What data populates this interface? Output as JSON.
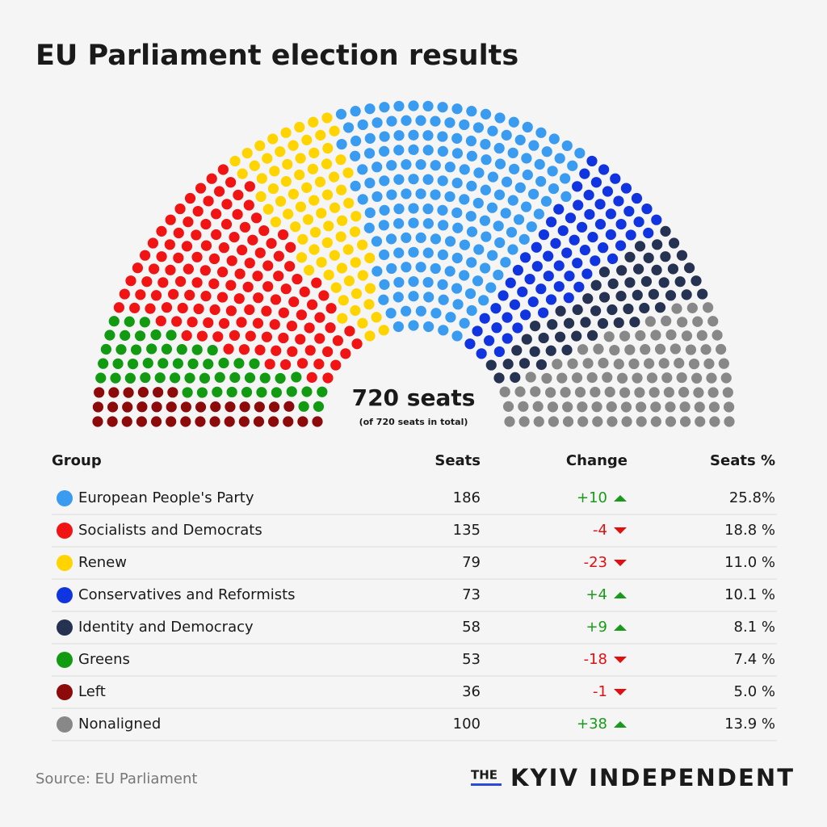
{
  "chart_data": {
    "type": "parliament",
    "title": "EU Parliament election results",
    "center_label": "720 seats",
    "center_note": "(of 720 seats in total)",
    "columns": [
      "Group",
      "Seats",
      "Change",
      "Seats %"
    ],
    "series": [
      {
        "name": "European People's Party",
        "color": "#3a9cf0",
        "value": 186,
        "change": 10,
        "change_label": "+10",
        "share": 25.8,
        "share_label": "25.8%"
      },
      {
        "name": "Socialists and Democrats",
        "color": "#f01414",
        "value": 135,
        "change": -4,
        "change_label": "-4",
        "share": 18.8,
        "share_label": "18.8 %"
      },
      {
        "name": "Renew",
        "color": "#ffd400",
        "value": 79,
        "change": -23,
        "change_label": "-23",
        "share": 11.0,
        "share_label": "11.0 %"
      },
      {
        "name": "Conservatives and Reformists",
        "color": "#1035e0",
        "value": 73,
        "change": 4,
        "change_label": "+4",
        "share": 10.1,
        "share_label": "10.1 %"
      },
      {
        "name": "Identity and Democracy",
        "color": "#263252",
        "value": 58,
        "change": 9,
        "change_label": "+9",
        "share": 8.1,
        "share_label": "8.1 %"
      },
      {
        "name": "Greens",
        "color": "#139a13",
        "value": 53,
        "change": -18,
        "change_label": "-18",
        "share": 7.4,
        "share_label": "7.4 %"
      },
      {
        "name": "Left",
        "color": "#8c0a0a",
        "value": 36,
        "change": -1,
        "change_label": "-1",
        "share": 5.0,
        "share_label": "5.0 %"
      },
      {
        "name": "Nonaligned",
        "color": "#888888",
        "value": 100,
        "change": 38,
        "change_label": "+38",
        "share": 13.9,
        "share_label": "13.9 %"
      }
    ],
    "source": "Source: EU Parliament",
    "logo_prefix": "THE",
    "logo": "KYIV INDEPENDENT"
  }
}
